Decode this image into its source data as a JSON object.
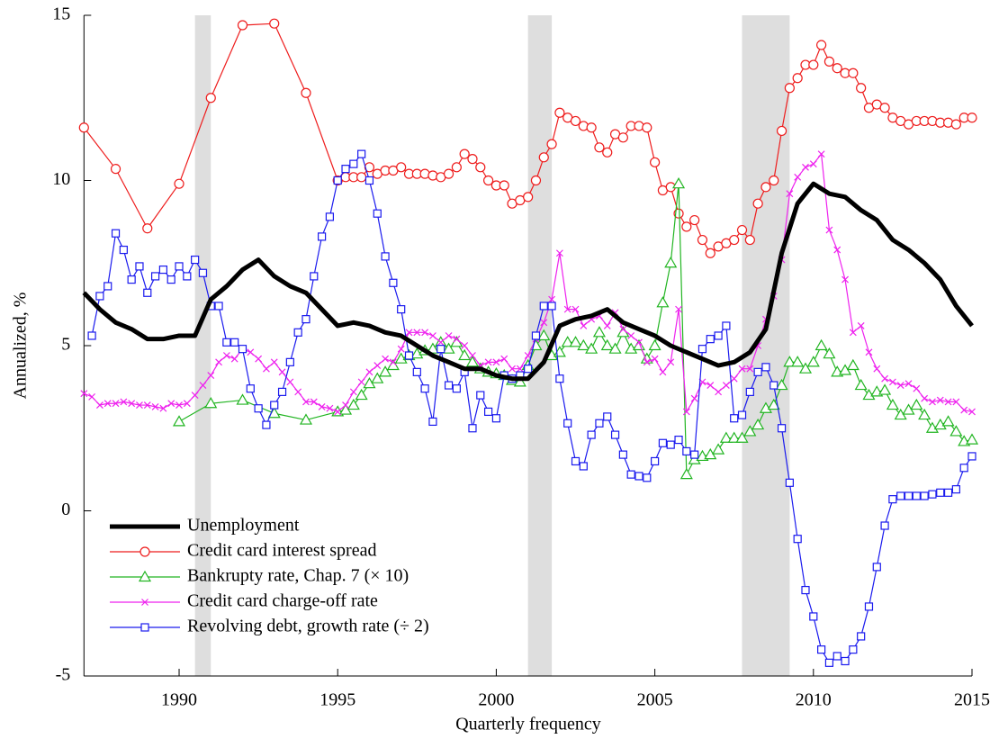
{
  "chart_data": {
    "type": "line",
    "xlabel": "Quarterly frequency",
    "ylabel": "Annualized, %",
    "xlim": [
      1987,
      2015
    ],
    "xticks": [
      1990,
      1995,
      2000,
      2005,
      2010,
      2015
    ],
    "ylim": [
      -5,
      15
    ],
    "yticks": [
      -5,
      0,
      5,
      10,
      15
    ],
    "legend": "lower left",
    "recessions": [
      {
        "start": 1990.5,
        "end": 1991.0
      },
      {
        "start": 2001.0,
        "end": 2001.75
      },
      {
        "start": 2007.75,
        "end": 2009.25
      }
    ],
    "series": [
      {
        "name": "Unemployment",
        "color": "#000000",
        "marker": "none",
        "width": 5,
        "x": [
          1987,
          1987.5,
          1988,
          1988.5,
          1989,
          1989.5,
          1990,
          1990.5,
          1991,
          1991.5,
          1992,
          1992.5,
          1993,
          1993.5,
          1994,
          1994.5,
          1995,
          1995.5,
          1996,
          1996.5,
          1997,
          1997.5,
          1998,
          1998.5,
          1999,
          1999.5,
          2000,
          2000.5,
          2001,
          2001.5,
          2002,
          2002.5,
          2003,
          2003.5,
          2004,
          2004.5,
          2005,
          2005.5,
          2006,
          2006.5,
          2007,
          2007.5,
          2008,
          2008.5,
          2009,
          2009.5,
          2010,
          2010.5,
          2011,
          2011.5,
          2012,
          2012.5,
          2013,
          2013.5,
          2014,
          2014.5,
          2015
        ],
        "values": [
          6.6,
          6.1,
          5.7,
          5.5,
          5.2,
          5.2,
          5.3,
          5.3,
          6.4,
          6.8,
          7.3,
          7.6,
          7.1,
          6.8,
          6.6,
          6.1,
          5.6,
          5.7,
          5.6,
          5.4,
          5.3,
          5.0,
          4.7,
          4.5,
          4.3,
          4.3,
          4.1,
          4.0,
          4.0,
          4.5,
          5.6,
          5.8,
          5.9,
          6.1,
          5.7,
          5.5,
          5.3,
          5.0,
          4.8,
          4.6,
          4.4,
          4.5,
          4.8,
          5.5,
          7.8,
          9.3,
          9.9,
          9.6,
          9.5,
          9.1,
          8.8,
          8.2,
          7.9,
          7.5,
          7.0,
          6.2,
          5.6
        ]
      },
      {
        "name": "Credit card interest spread",
        "color": "#ee1c1c",
        "marker": "circle",
        "width": 1.2,
        "x": [
          1987,
          1988,
          1989,
          1990,
          1991,
          1992,
          1993,
          1994,
          1995,
          1995.25,
          1995.5,
          1995.75,
          1996,
          1996.25,
          1996.5,
          1996.75,
          1997,
          1997.25,
          1997.5,
          1997.75,
          1998,
          1998.25,
          1998.5,
          1998.75,
          1999,
          1999.25,
          1999.5,
          1999.75,
          2000,
          2000.25,
          2000.5,
          2000.75,
          2001,
          2001.25,
          2001.5,
          2001.75,
          2002,
          2002.25,
          2002.5,
          2002.75,
          2003,
          2003.25,
          2003.5,
          2003.75,
          2004,
          2004.25,
          2004.5,
          2004.75,
          2005,
          2005.25,
          2005.5,
          2005.75,
          2006,
          2006.25,
          2006.5,
          2006.75,
          2007,
          2007.25,
          2007.5,
          2007.75,
          2008,
          2008.25,
          2008.5,
          2008.75,
          2009,
          2009.25,
          2009.5,
          2009.75,
          2010,
          2010.25,
          2010.5,
          2010.75,
          2011,
          2011.25,
          2011.5,
          2011.75,
          2012,
          2012.25,
          2012.5,
          2012.75,
          2013,
          2013.25,
          2013.5,
          2013.75,
          2014,
          2014.25,
          2014.5,
          2014.75,
          2015
        ],
        "values": [
          11.6,
          10.35,
          8.55,
          9.9,
          12.5,
          14.7,
          14.75,
          12.65,
          10.0,
          10.1,
          10.1,
          10.1,
          10.4,
          10.2,
          10.3,
          10.3,
          10.4,
          10.2,
          10.2,
          10.2,
          10.15,
          10.1,
          10.2,
          10.4,
          10.8,
          10.65,
          10.4,
          10.0,
          9.85,
          9.85,
          9.3,
          9.4,
          9.5,
          10.0,
          10.7,
          11.1,
          12.05,
          11.9,
          11.8,
          11.65,
          11.6,
          11.0,
          10.85,
          11.4,
          11.3,
          11.65,
          11.65,
          11.6,
          10.55,
          9.7,
          9.8,
          9.0,
          8.6,
          8.8,
          8.2,
          7.8,
          8.0,
          8.1,
          8.2,
          8.5,
          8.2,
          9.3,
          9.8,
          10.0,
          11.5,
          12.8,
          13.1,
          13.5,
          13.5,
          14.1,
          13.6,
          13.4,
          13.25,
          13.25,
          12.8,
          12.2,
          12.3,
          12.2,
          11.9,
          11.8,
          11.7,
          11.8,
          11.8,
          11.8,
          11.75,
          11.75,
          11.7,
          11.9,
          11.9
        ]
      },
      {
        "name": "Bankrupty rate, Chap. 7 (× 10)",
        "color": "#22b522",
        "marker": "triangle",
        "width": 1.2,
        "x": [
          1990,
          1991,
          1992,
          1993,
          1994,
          1995,
          1995.25,
          1995.5,
          1995.75,
          1996,
          1996.25,
          1996.5,
          1996.75,
          1997,
          1997.25,
          1997.5,
          1997.75,
          1998,
          1998.25,
          1998.5,
          1998.75,
          1999,
          1999.25,
          1999.5,
          1999.75,
          2000,
          2000.25,
          2000.5,
          2000.75,
          2001,
          2001.25,
          2001.5,
          2001.75,
          2002,
          2002.25,
          2002.5,
          2002.75,
          2003,
          2003.25,
          2003.5,
          2003.75,
          2004,
          2004.25,
          2004.5,
          2004.75,
          2005,
          2005.25,
          2005.5,
          2005.75,
          2006,
          2006.25,
          2006.5,
          2006.75,
          2007,
          2007.25,
          2007.5,
          2007.75,
          2008,
          2008.25,
          2008.5,
          2008.75,
          2009,
          2009.25,
          2009.5,
          2009.75,
          2010,
          2010.25,
          2010.5,
          2010.75,
          2011,
          2011.25,
          2011.5,
          2011.75,
          2012,
          2012.25,
          2012.5,
          2012.75,
          2013,
          2013.25,
          2013.5,
          2013.75,
          2014,
          2014.25,
          2014.5,
          2014.75,
          2015
        ],
        "values": [
          2.7,
          3.25,
          3.35,
          2.95,
          2.75,
          3.0,
          3.05,
          3.2,
          3.5,
          3.85,
          4.0,
          4.2,
          4.4,
          4.6,
          4.7,
          4.75,
          4.85,
          4.9,
          5.1,
          4.9,
          5.1,
          4.7,
          4.5,
          4.3,
          4.2,
          4.15,
          4.1,
          3.95,
          3.9,
          4.4,
          5.0,
          5.3,
          4.7,
          4.8,
          5.1,
          5.1,
          5.0,
          4.9,
          5.4,
          5.0,
          4.9,
          5.4,
          4.9,
          5.0,
          4.6,
          5.0,
          6.3,
          7.5,
          9.9,
          1.1,
          1.55,
          1.65,
          1.7,
          1.85,
          2.2,
          2.2,
          2.2,
          2.4,
          2.6,
          3.1,
          3.2,
          3.8,
          4.5,
          4.5,
          4.3,
          4.5,
          5.0,
          4.75,
          4.2,
          4.25,
          4.4,
          3.8,
          3.5,
          3.6,
          3.65,
          3.2,
          2.9,
          3.05,
          3.2,
          2.9,
          2.5,
          2.6,
          2.7,
          2.4,
          2.1,
          2.15
        ]
      },
      {
        "name": "Credit card charge-off rate",
        "color": "#ee22ee",
        "marker": "x",
        "width": 1.2,
        "x": [
          1987,
          1987.25,
          1987.5,
          1987.75,
          1988,
          1988.25,
          1988.5,
          1988.75,
          1989,
          1989.25,
          1989.5,
          1989.75,
          1990,
          1990.25,
          1990.5,
          1990.75,
          1991,
          1991.25,
          1991.5,
          1991.75,
          1992,
          1992.25,
          1992.5,
          1992.75,
          1993,
          1993.25,
          1993.5,
          1993.75,
          1994,
          1994.25,
          1994.5,
          1994.75,
          1995,
          1995.25,
          1995.5,
          1995.75,
          1996,
          1996.25,
          1996.5,
          1996.75,
          1997,
          1997.25,
          1997.5,
          1997.75,
          1998,
          1998.25,
          1998.5,
          1998.75,
          1999,
          1999.25,
          1999.5,
          1999.75,
          2000,
          2000.25,
          2000.5,
          2000.75,
          2001,
          2001.25,
          2001.5,
          2001.75,
          2002,
          2002.25,
          2002.5,
          2002.75,
          2003,
          2003.25,
          2003.5,
          2003.75,
          2004,
          2004.25,
          2004.5,
          2004.75,
          2005,
          2005.25,
          2005.5,
          2005.75,
          2006,
          2006.25,
          2006.5,
          2006.75,
          2007,
          2007.25,
          2007.5,
          2007.75,
          2008,
          2008.25,
          2008.5,
          2008.75,
          2009,
          2009.25,
          2009.5,
          2009.75,
          2010,
          2010.25,
          2010.5,
          2010.75,
          2011,
          2011.25,
          2011.5,
          2011.75,
          2012,
          2012.25,
          2012.5,
          2012.75,
          2013,
          2013.25,
          2013.5,
          2013.75,
          2014,
          2014.25,
          2014.5,
          2014.75,
          2015
        ],
        "values": [
          3.55,
          3.45,
          3.2,
          3.25,
          3.25,
          3.3,
          3.25,
          3.2,
          3.2,
          3.15,
          3.1,
          3.25,
          3.2,
          3.25,
          3.5,
          3.8,
          4.1,
          4.5,
          4.7,
          4.6,
          4.9,
          4.8,
          4.6,
          4.3,
          4.5,
          4.2,
          3.9,
          3.6,
          3.3,
          3.3,
          3.15,
          3.1,
          3.0,
          3.2,
          3.6,
          3.9,
          4.2,
          4.4,
          4.6,
          4.5,
          4.9,
          5.4,
          5.4,
          5.4,
          5.3,
          5.1,
          5.3,
          5.2,
          5.0,
          4.7,
          4.4,
          4.5,
          4.5,
          4.6,
          4.3,
          4.3,
          4.7,
          5.2,
          5.7,
          6.4,
          7.8,
          6.1,
          6.1,
          5.6,
          5.8,
          5.9,
          5.6,
          6.0,
          5.5,
          5.3,
          5.1,
          4.5,
          4.6,
          4.2,
          4.5,
          6.1,
          3.0,
          3.4,
          3.9,
          3.8,
          3.6,
          3.8,
          4.0,
          4.3,
          4.3,
          5.0,
          5.8,
          6.5,
          7.6,
          9.6,
          10.1,
          10.4,
          10.5,
          10.8,
          8.5,
          7.9,
          7.0,
          5.4,
          5.6,
          4.8,
          4.3,
          4.0,
          3.9,
          3.8,
          3.85,
          3.7,
          3.4,
          3.3,
          3.35,
          3.3,
          3.3,
          3.05,
          3.0
        ]
      },
      {
        "name": "Revolving debt, growth rate (÷ 2)",
        "color": "#1a1aee",
        "marker": "square",
        "width": 1.2,
        "x": [
          1987.25,
          1987.5,
          1987.75,
          1988,
          1988.25,
          1988.5,
          1988.75,
          1989,
          1989.25,
          1989.5,
          1989.75,
          1990,
          1990.25,
          1990.5,
          1990.75,
          1991,
          1991.25,
          1991.5,
          1991.75,
          1992,
          1992.25,
          1992.5,
          1992.75,
          1993,
          1993.25,
          1993.5,
          1993.75,
          1994,
          1994.25,
          1994.5,
          1994.75,
          1995,
          1995.25,
          1995.5,
          1995.75,
          1996,
          1996.25,
          1996.5,
          1996.75,
          1997,
          1997.25,
          1997.5,
          1997.75,
          1998,
          1998.25,
          1998.5,
          1998.75,
          1999,
          1999.25,
          1999.5,
          1999.75,
          2000,
          2000.25,
          2000.5,
          2000.75,
          2001,
          2001.25,
          2001.5,
          2001.75,
          2002,
          2002.25,
          2002.5,
          2002.75,
          2003,
          2003.25,
          2003.5,
          2003.75,
          2004,
          2004.25,
          2004.5,
          2004.75,
          2005,
          2005.25,
          2005.5,
          2005.75,
          2006,
          2006.25,
          2006.5,
          2006.75,
          2007,
          2007.25,
          2007.5,
          2007.75,
          2008,
          2008.25,
          2008.5,
          2008.75,
          2009,
          2009.25,
          2009.5,
          2009.75,
          2010,
          2010.25,
          2010.5,
          2010.75,
          2011,
          2011.25,
          2011.5,
          2011.75,
          2012,
          2012.25,
          2012.5,
          2012.75,
          2013,
          2013.25,
          2013.5,
          2013.75,
          2014,
          2014.25,
          2014.5,
          2014.75,
          2015
        ],
        "values": [
          5.3,
          6.5,
          6.8,
          8.4,
          7.9,
          7.0,
          7.4,
          6.6,
          7.1,
          7.3,
          7.0,
          7.4,
          7.1,
          7.6,
          7.2,
          6.2,
          6.2,
          5.1,
          5.1,
          4.9,
          3.7,
          3.1,
          2.6,
          3.2,
          3.6,
          4.5,
          5.4,
          5.8,
          7.1,
          8.3,
          8.9,
          10.0,
          10.35,
          10.5,
          10.8,
          10.0,
          9.0,
          7.7,
          6.9,
          6.1,
          4.7,
          4.2,
          3.7,
          2.7,
          4.9,
          3.8,
          3.7,
          4.2,
          2.5,
          3.5,
          3.0,
          2.8,
          4.1,
          4.0,
          4.1,
          4.3,
          5.3,
          6.2,
          6.2,
          4.0,
          2.65,
          1.5,
          1.35,
          2.3,
          2.65,
          2.85,
          2.3,
          1.7,
          1.1,
          1.05,
          1.0,
          1.5,
          2.05,
          2.0,
          2.15,
          1.8,
          1.7,
          4.9,
          5.2,
          5.3,
          5.6,
          2.8,
          2.9,
          3.6,
          4.2,
          4.35,
          3.8,
          2.5,
          0.85,
          -0.85,
          -2.4,
          -3.2,
          -4.2,
          -4.6,
          -4.4,
          -4.55,
          -4.2,
          -3.8,
          -2.9,
          -1.7,
          -0.45,
          0.35,
          0.45,
          0.45,
          0.45,
          0.45,
          0.5,
          0.55,
          0.55,
          0.65,
          1.3,
          1.65
        ]
      }
    ]
  }
}
